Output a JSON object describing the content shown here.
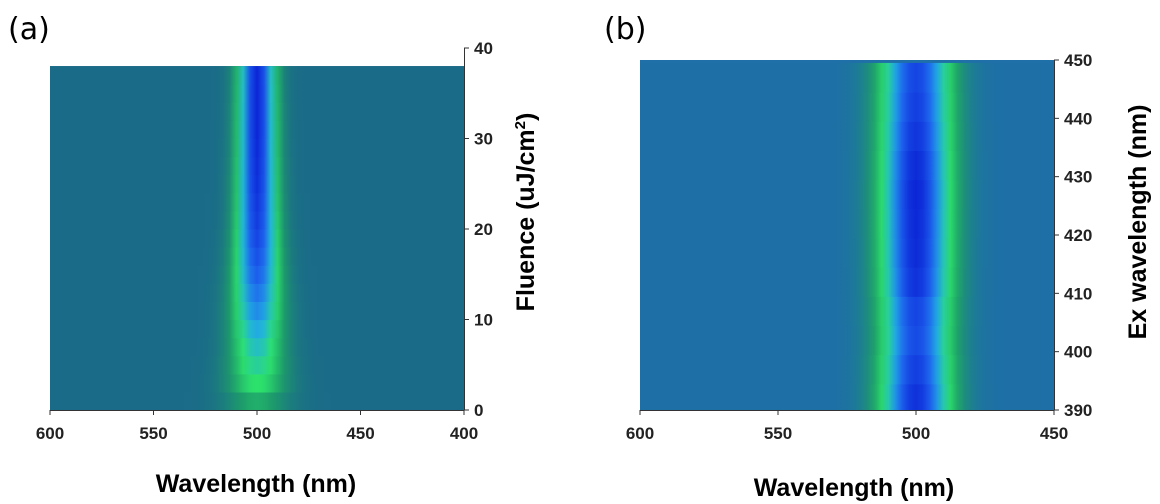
{
  "panels": {
    "a_label": "(a)",
    "b_label": "(b)"
  },
  "chart_data": [
    {
      "type": "heatmap",
      "panel": "(a)",
      "xlabel": "Wavelength (nm)",
      "ylabel": "Fluence (uJ/cm",
      "ylabel_sup": "2",
      "ylabel_close": ")",
      "xlim": [
        600,
        400
      ],
      "ylim": [
        0,
        40
      ],
      "ymax_data": 38,
      "xticks": [
        "600",
        "550",
        "500",
        "450",
        "400"
      ],
      "xtick_values": [
        600,
        550,
        500,
        450,
        400
      ],
      "yticks": [
        "0",
        "10",
        "20",
        "30",
        "40"
      ],
      "ytick_values": [
        0,
        10,
        20,
        30,
        40
      ],
      "y_axis_side": "right",
      "colormap": [
        "#1a6b88",
        "#1d9c6a",
        "#2de36c",
        "#21b2e0",
        "#1e63ee",
        "#0b25d6"
      ],
      "background_color": "#1f6789",
      "band": {
        "center_nm": 500,
        "rows_fluence": [
          1,
          3,
          5,
          7,
          9,
          11,
          13,
          15,
          17,
          19,
          21,
          23,
          25,
          27,
          29,
          31,
          33,
          35,
          37
        ],
        "intensity": [
          0.25,
          0.4,
          0.48,
          0.55,
          0.62,
          0.7,
          0.76,
          0.82,
          0.86,
          0.9,
          0.93,
          0.95,
          0.97,
          0.98,
          0.99,
          1.0,
          1.0,
          1.0,
          1.0
        ],
        "width_nm": [
          18,
          17,
          16,
          15,
          14.5,
          14,
          13.5,
          13,
          12.5,
          12,
          11.5,
          11.2,
          11,
          10.8,
          10.6,
          10.5,
          10.4,
          10.3,
          10.2
        ]
      }
    },
    {
      "type": "heatmap",
      "panel": "(b)",
      "xlabel": "Wavelength (nm)",
      "ylabel": "Ex wavelength (nm)",
      "xlim": [
        600,
        450
      ],
      "ylim": [
        390,
        450
      ],
      "xticks": [
        "600",
        "550",
        "500",
        "450"
      ],
      "xtick_values": [
        600,
        550,
        500,
        450
      ],
      "yticks": [
        "390",
        "400",
        "410",
        "420",
        "430",
        "440",
        "450"
      ],
      "ytick_values": [
        390,
        400,
        410,
        420,
        430,
        440,
        450
      ],
      "y_axis_side": "right",
      "colormap": [
        "#1d6fa6",
        "#1d9c6a",
        "#2de36c",
        "#21b2e0",
        "#1e63ee",
        "#0b25d6"
      ],
      "background_color": "#1f6fa8",
      "band": {
        "center_nm": 500,
        "rows_exwl": [
          392,
          397,
          402,
          407,
          412,
          417,
          422,
          427,
          432,
          437,
          442,
          447
        ],
        "intensity": [
          0.96,
          0.92,
          0.88,
          0.9,
          0.96,
          0.98,
          0.99,
          1.0,
          0.98,
          0.95,
          0.92,
          0.9
        ],
        "width_nm": [
          15,
          15,
          15,
          15,
          15,
          15,
          15,
          15,
          15,
          15,
          15,
          15
        ]
      }
    }
  ]
}
